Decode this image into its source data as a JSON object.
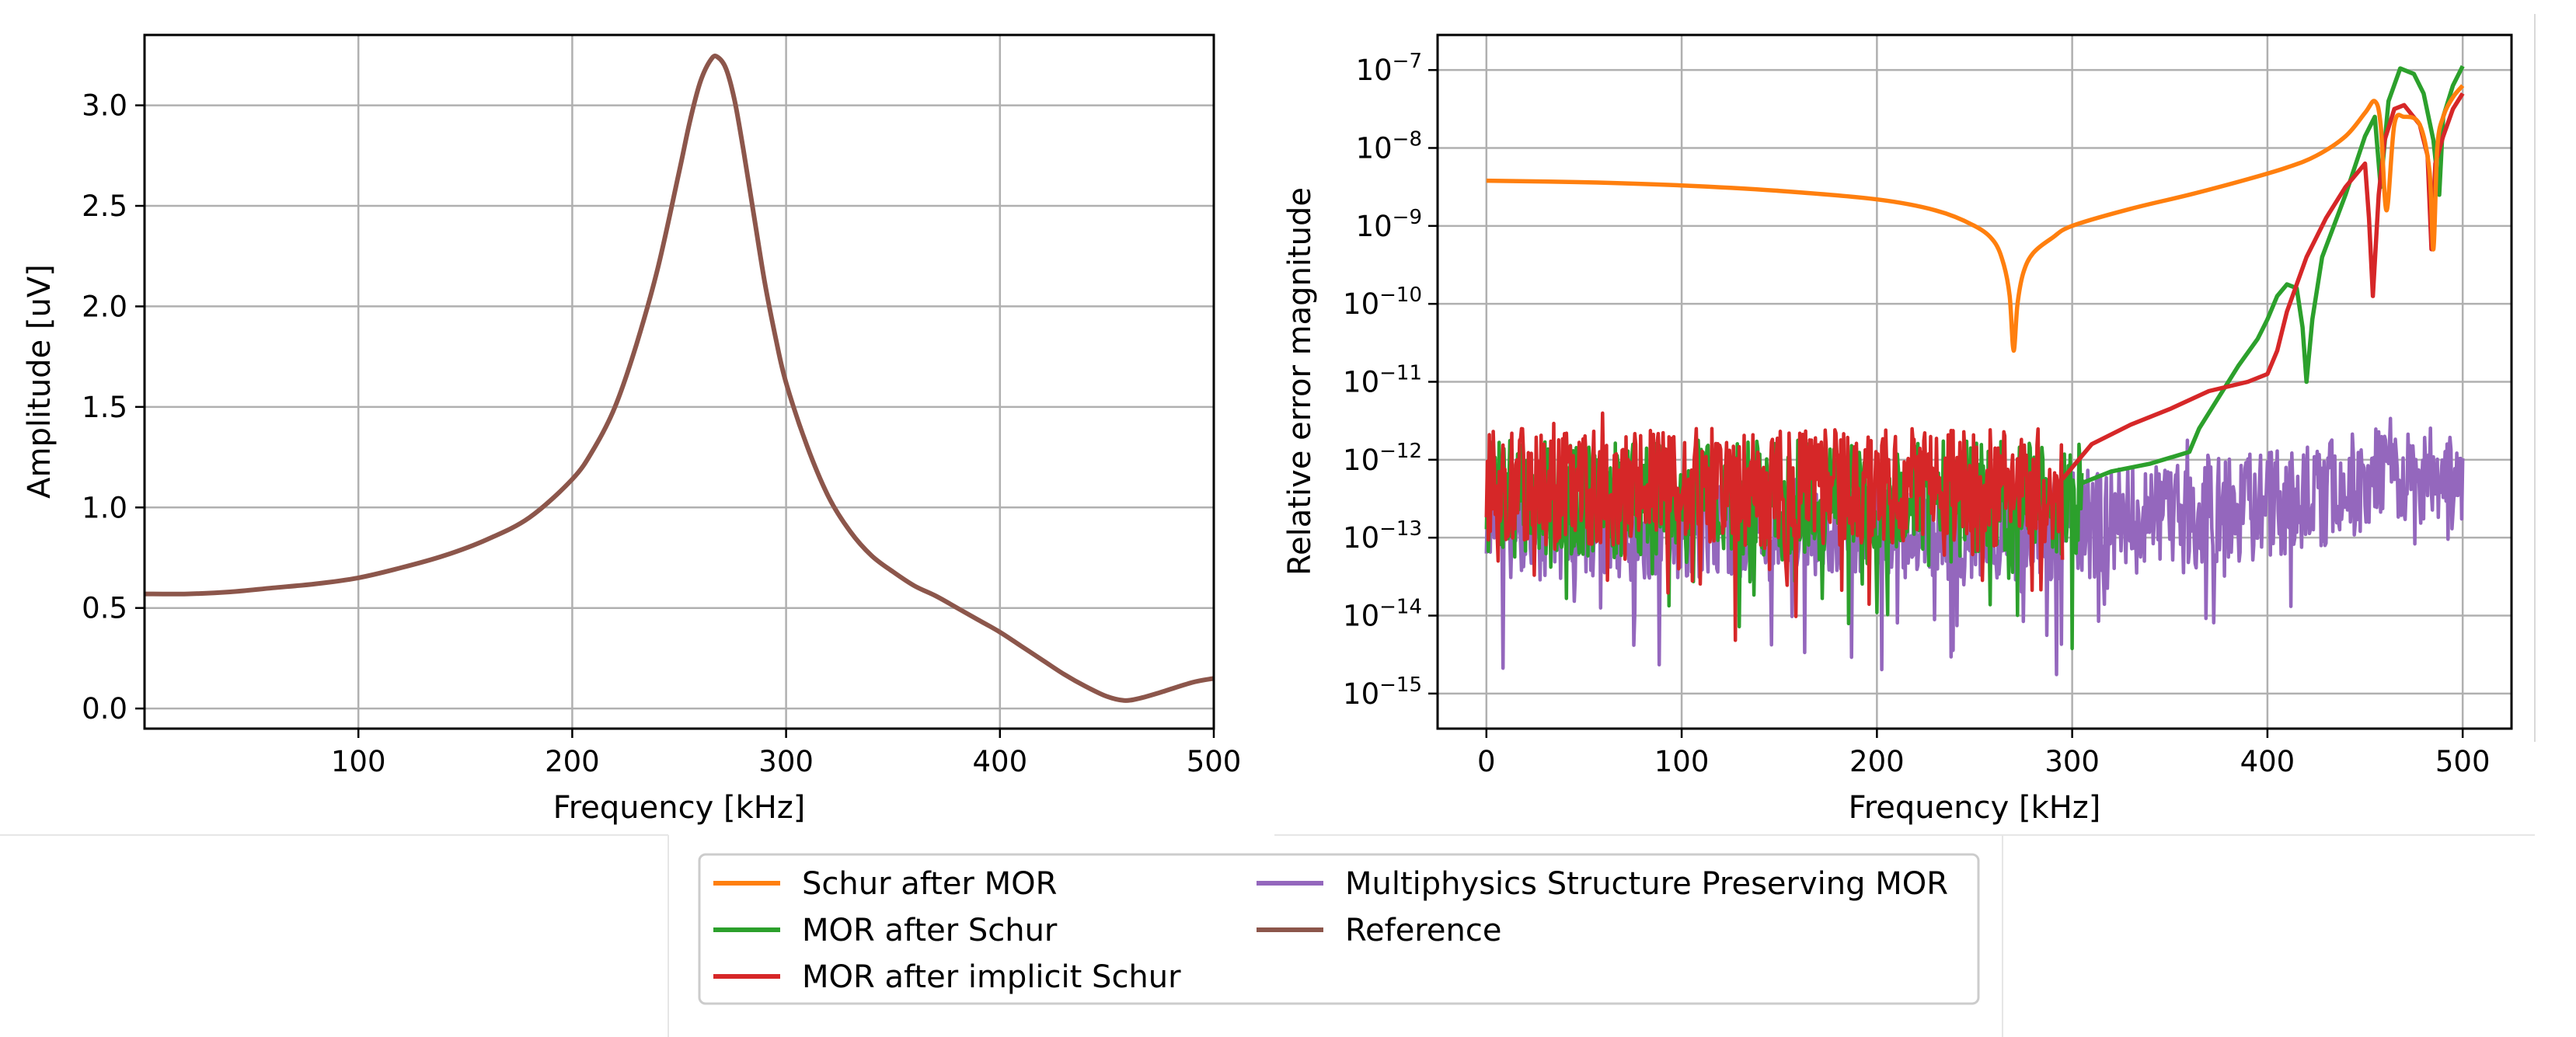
{
  "chart_data": [
    {
      "type": "line",
      "title": "",
      "xlabel": "Frequency [kHz]",
      "ylabel": "Amplitude [uV]",
      "xlim": [
        0,
        500
      ],
      "ylim": [
        -0.1,
        3.35
      ],
      "grid": true,
      "x_ticks": [
        100,
        200,
        300,
        400,
        500
      ],
      "x_tick_labels": [
        "100",
        "200",
        "300",
        "400",
        "500"
      ],
      "y_ticks": [
        0.0,
        0.5,
        1.0,
        1.5,
        2.0,
        2.5,
        3.0
      ],
      "y_tick_labels": [
        "0.0",
        "0.5",
        "1.0",
        "1.5",
        "2.0",
        "2.5",
        "3.0"
      ],
      "series": [
        {
          "name": "Reference",
          "color": "#8c564b",
          "x": [
            0,
            20,
            40,
            60,
            80,
            100,
            120,
            140,
            160,
            180,
            200,
            210,
            220,
            230,
            240,
            250,
            255,
            260,
            265,
            268,
            272,
            276,
            280,
            285,
            290,
            295,
            300,
            310,
            320,
            330,
            340,
            350,
            360,
            370,
            380,
            390,
            400,
            410,
            420,
            430,
            440,
            450,
            458,
            465,
            475,
            490,
            500
          ],
          "y": [
            0.57,
            0.57,
            0.58,
            0.6,
            0.62,
            0.65,
            0.7,
            0.76,
            0.84,
            0.95,
            1.14,
            1.29,
            1.5,
            1.81,
            2.19,
            2.67,
            2.92,
            3.12,
            3.23,
            3.24,
            3.18,
            3.02,
            2.78,
            2.45,
            2.12,
            1.85,
            1.62,
            1.3,
            1.05,
            0.88,
            0.76,
            0.68,
            0.61,
            0.56,
            0.5,
            0.44,
            0.38,
            0.31,
            0.24,
            0.17,
            0.11,
            0.06,
            0.04,
            0.05,
            0.08,
            0.13,
            0.15
          ]
        }
      ]
    },
    {
      "type": "line",
      "title": "",
      "xlabel": "Frequency [kHz]",
      "ylabel": "Relative error magnitude",
      "xscale": "linear",
      "yscale": "log",
      "xlim": [
        -25,
        525
      ],
      "ylim_log10": [
        -15.45,
        -6.55
      ],
      "grid": true,
      "x_ticks": [
        0,
        100,
        200,
        300,
        400,
        500
      ],
      "x_tick_labels": [
        "0",
        "100",
        "200",
        "300",
        "400",
        "500"
      ],
      "y_ticks_log10": [
        -15,
        -14,
        -13,
        -12,
        -11,
        -10,
        -9,
        -8,
        -7
      ],
      "y_tick_labels": [
        {
          "base": "10",
          "exp": "−15"
        },
        {
          "base": "10",
          "exp": "−14"
        },
        {
          "base": "10",
          "exp": "−13"
        },
        {
          "base": "10",
          "exp": "−12"
        },
        {
          "base": "10",
          "exp": "−11"
        },
        {
          "base": "10",
          "exp": "−10"
        },
        {
          "base": "10",
          "exp": "−9"
        },
        {
          "base": "10",
          "exp": "−8"
        },
        {
          "base": "10",
          "exp": "−7"
        }
      ],
      "series": [
        {
          "name": "Schur after MOR",
          "color": "#ff7f0e",
          "kind": "smooth",
          "x": [
            0,
            50,
            100,
            150,
            200,
            230,
            250,
            260,
            265,
            268,
            270,
            272,
            275,
            280,
            290,
            300,
            330,
            360,
            390,
            410,
            425,
            440,
            450,
            455,
            458,
            461,
            465,
            470,
            478,
            483,
            485,
            487,
            490,
            495,
            500
          ],
          "y_log10": [
            -8.42,
            -8.44,
            -8.48,
            -8.55,
            -8.66,
            -8.8,
            -9.0,
            -9.2,
            -9.5,
            -9.9,
            -10.6,
            -10.0,
            -9.6,
            -9.35,
            -9.15,
            -9.0,
            -8.78,
            -8.6,
            -8.4,
            -8.25,
            -8.1,
            -7.85,
            -7.55,
            -7.4,
            -7.7,
            -8.8,
            -7.7,
            -7.6,
            -7.7,
            -8.3,
            -9.3,
            -8.0,
            -7.6,
            -7.35,
            -7.2
          ]
        },
        {
          "name": "MOR after Schur",
          "color": "#2ca02c",
          "kind": "noisy",
          "seed": 7,
          "noise_x": [
            0,
            305
          ],
          "noise_base_log10": -12.5,
          "noise_amplitude": 0.75,
          "noise_dips": 1.25,
          "x": [
            305,
            320,
            340,
            360,
            365,
            375,
            385,
            395,
            400,
            405,
            410,
            415,
            418,
            420,
            423,
            428,
            440,
            450,
            455,
            458,
            462,
            468,
            475,
            480,
            485,
            488,
            490,
            495,
            500
          ],
          "y_log10": [
            -12.3,
            -12.15,
            -12.05,
            -11.9,
            -11.6,
            -11.2,
            -10.8,
            -10.45,
            -10.2,
            -9.9,
            -9.75,
            -9.8,
            -10.3,
            -11.0,
            -10.2,
            -9.4,
            -8.6,
            -7.85,
            -7.6,
            -8.5,
            -7.4,
            -6.98,
            -7.05,
            -7.3,
            -7.9,
            -8.6,
            -7.6,
            -7.2,
            -6.95
          ]
        },
        {
          "name": "MOR after implicit Schur",
          "color": "#d62728",
          "kind": "noisy",
          "seed": 13,
          "noise_x": [
            0,
            295
          ],
          "noise_base_log10": -12.35,
          "noise_amplitude": 0.75,
          "noise_dips": 1.3,
          "x": [
            295,
            310,
            330,
            350,
            370,
            390,
            400,
            405,
            410,
            415,
            420,
            430,
            440,
            450,
            452,
            454,
            457,
            460,
            465,
            470,
            478,
            482,
            484,
            486,
            490,
            495,
            500
          ],
          "y_log10": [
            -12.25,
            -11.8,
            -11.55,
            -11.35,
            -11.12,
            -11.0,
            -10.9,
            -10.6,
            -10.1,
            -9.75,
            -9.4,
            -8.9,
            -8.5,
            -8.2,
            -8.9,
            -9.9,
            -8.6,
            -7.9,
            -7.5,
            -7.45,
            -7.7,
            -8.1,
            -9.3,
            -8.2,
            -7.85,
            -7.5,
            -7.3
          ]
        },
        {
          "name": "Multiphysics Structure Preserving MOR",
          "color": "#9467bd",
          "kind": "noisy",
          "seed": 29,
          "noise_x": [
            0,
            500
          ],
          "noise_base_log10": -12.85,
          "noise_trend": [
            [
              0,
              -12.85
            ],
            [
              300,
              -12.85
            ],
            [
              350,
              -12.75
            ],
            [
              400,
              -12.6
            ],
            [
              440,
              -12.35
            ],
            [
              460,
              -12.1
            ],
            [
              475,
              -12.3
            ],
            [
              500,
              -12.4
            ]
          ],
          "noise_amplitude": 0.7,
          "noise_dips": 1.4
        },
        {
          "name": "Reference",
          "color": "#8c564b",
          "kind": "legend-only"
        }
      ]
    }
  ],
  "legend": {
    "placement": "bottom-center",
    "entries": [
      {
        "label": "Schur after MOR",
        "color": "#ff7f0e"
      },
      {
        "label": "MOR after Schur",
        "color": "#2ca02c"
      },
      {
        "label": "MOR after implicit Schur",
        "color": "#d62728"
      },
      {
        "label": "Multiphysics Structure Preserving MOR",
        "color": "#9467bd"
      },
      {
        "label": "Reference",
        "color": "#8c564b"
      }
    ]
  }
}
